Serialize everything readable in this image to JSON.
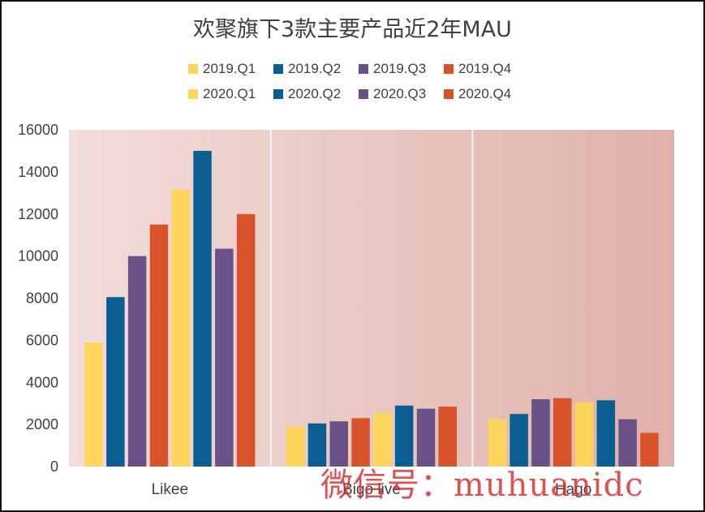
{
  "chart_data": {
    "type": "bar",
    "title": "欢聚旗下3款主要产品近2年MAU",
    "categories": [
      "Likee",
      "Bigo live",
      "Hago"
    ],
    "series": [
      {
        "name": "2019.Q1",
        "color": "#FFD65C",
        "values": [
          5900,
          1900,
          2250
        ]
      },
      {
        "name": "2019.Q2",
        "color": "#0A5E92",
        "values": [
          8050,
          2050,
          2500
        ]
      },
      {
        "name": "2019.Q3",
        "color": "#6A5288",
        "values": [
          10000,
          2150,
          3200
        ]
      },
      {
        "name": "2019.Q4",
        "color": "#D9532A",
        "values": [
          11500,
          2300,
          3250
        ]
      },
      {
        "name": "2020.Q1",
        "color": "#FFD65C",
        "values": [
          13150,
          2550,
          3050
        ]
      },
      {
        "name": "2020.Q2",
        "color": "#0A5E92",
        "values": [
          15000,
          2900,
          3150
        ]
      },
      {
        "name": "2020.Q3",
        "color": "#6A5288",
        "values": [
          10350,
          2750,
          2250
        ]
      },
      {
        "name": "2020.Q4",
        "color": "#D9532A",
        "values": [
          12000,
          2850,
          1600
        ]
      }
    ],
    "ylim": [
      0,
      16000
    ],
    "yticks": [
      "0",
      "2000",
      "4000",
      "6000",
      "8000",
      "10000",
      "12000",
      "14000",
      "16000"
    ],
    "legend_position": "top",
    "grid": false
  },
  "watermark": "微信号：muhuanidc"
}
